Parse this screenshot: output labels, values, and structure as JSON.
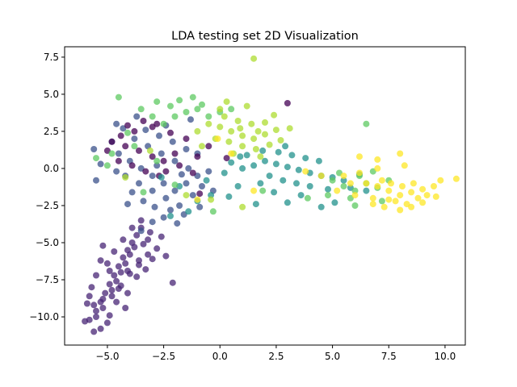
{
  "chart_data": {
    "type": "scatter",
    "title": "LDA testing set 2D Visualization",
    "xlabel": "",
    "ylabel": "",
    "xlim": [
      -6.9,
      10.9
    ],
    "ylim": [
      -11.9,
      8.2
    ],
    "xticks": [
      -5.0,
      -2.5,
      0.0,
      2.5,
      5.0,
      7.5,
      10.0
    ],
    "xtick_labels": [
      "−5.0",
      "−2.5",
      "0.0",
      "2.5",
      "5.0",
      "7.5",
      "10.0"
    ],
    "yticks": [
      -10.0,
      -7.5,
      -5.0,
      -2.5,
      0.0,
      2.5,
      5.0,
      7.5
    ],
    "ytick_labels": [
      "−10.0",
      "−7.5",
      "−5.0",
      "−2.5",
      "0.0",
      "2.5",
      "5.0",
      "7.5"
    ],
    "grid": false,
    "legend": "none",
    "marker_alpha": 0.75,
    "series": [
      {
        "color": "#482576",
        "description": "lower-left elongated cluster",
        "points": [
          [
            -5.8,
            -10.2
          ],
          [
            -5.5,
            -9.6
          ],
          [
            -5.3,
            -9.0
          ],
          [
            -5.1,
            -8.4
          ],
          [
            -4.9,
            -7.8
          ],
          [
            -4.7,
            -7.2
          ],
          [
            -4.5,
            -6.6
          ],
          [
            -4.3,
            -6.0
          ],
          [
            -4.1,
            -5.5
          ],
          [
            -3.9,
            -5.0
          ],
          [
            -3.7,
            -4.5
          ],
          [
            -3.5,
            -4.0
          ],
          [
            -5.6,
            -9.2
          ],
          [
            -5.2,
            -8.8
          ],
          [
            -4.8,
            -8.2
          ],
          [
            -4.6,
            -7.6
          ],
          [
            -4.4,
            -7.0
          ],
          [
            -4.2,
            -6.4
          ],
          [
            -4.0,
            -5.8
          ],
          [
            -3.8,
            -5.3
          ],
          [
            -3.4,
            -5.1
          ],
          [
            -3.2,
            -5.8
          ],
          [
            -3.6,
            -6.5
          ],
          [
            -4.0,
            -7.1
          ],
          [
            -4.4,
            -7.9
          ],
          [
            -4.8,
            -8.6
          ],
          [
            -5.2,
            -9.4
          ],
          [
            -5.5,
            -10.0
          ],
          [
            -5.0,
            -10.4
          ],
          [
            -5.3,
            -10.8
          ],
          [
            -5.6,
            -11.0
          ],
          [
            -6.0,
            -10.3
          ],
          [
            -5.9,
            -9.1
          ],
          [
            -5.7,
            -8.0
          ],
          [
            -5.5,
            -7.2
          ],
          [
            -5.3,
            -6.2
          ],
          [
            -5.2,
            -5.2
          ],
          [
            -4.9,
            -6.9
          ],
          [
            -4.5,
            -8.1
          ],
          [
            -4.1,
            -8.4
          ],
          [
            -3.7,
            -7.3
          ],
          [
            -3.3,
            -6.8
          ],
          [
            -3.0,
            -6.1
          ],
          [
            -2.8,
            -5.4
          ],
          [
            -2.6,
            -4.6
          ],
          [
            -3.1,
            -4.3
          ],
          [
            -3.9,
            -4.0
          ],
          [
            -4.3,
            -4.8
          ],
          [
            -4.7,
            -5.6
          ],
          [
            -5.0,
            -6.4
          ],
          [
            -2.1,
            -7.7
          ],
          [
            -2.4,
            -5.9
          ],
          [
            -3.5,
            -3.5
          ],
          [
            -4.6,
            -9.0
          ],
          [
            -4.2,
            -9.4
          ],
          [
            -5.8,
            -8.6
          ],
          [
            -4.9,
            -9.9
          ],
          [
            -3.6,
            -6.2
          ],
          [
            -3.2,
            -4.8
          ],
          [
            -4.1,
            -6.9
          ]
        ]
      },
      {
        "color": "#3b528b",
        "description": "upper-left blue cluster",
        "points": [
          [
            -4.5,
            1.0
          ],
          [
            -4.0,
            0.5
          ],
          [
            -3.5,
            0.0
          ],
          [
            -3.0,
            -0.5
          ],
          [
            -2.5,
            -1.0
          ],
          [
            -2.0,
            -1.5
          ],
          [
            -1.5,
            -1.0
          ],
          [
            -1.0,
            -0.5
          ],
          [
            -3.8,
            2.0
          ],
          [
            -3.2,
            1.5
          ],
          [
            -2.6,
            1.0
          ],
          [
            -2.0,
            0.5
          ],
          [
            -1.4,
            0.0
          ],
          [
            -4.2,
            -0.5
          ],
          [
            -3.6,
            -1.0
          ],
          [
            -3.0,
            -1.5
          ],
          [
            -2.4,
            -2.0
          ],
          [
            -1.8,
            -2.5
          ],
          [
            -3.3,
            2.6
          ],
          [
            -2.7,
            2.2
          ],
          [
            -2.1,
            1.8
          ],
          [
            -1.5,
            1.3
          ],
          [
            -4.8,
            1.8
          ],
          [
            -4.6,
            -0.2
          ],
          [
            -3.4,
            -2.2
          ],
          [
            -2.2,
            -2.8
          ],
          [
            -1.2,
            -1.8
          ],
          [
            -0.8,
            -1.2
          ],
          [
            -0.5,
            -0.2
          ],
          [
            -1.0,
            1.0
          ],
          [
            -3.9,
            -1.6
          ],
          [
            -2.9,
            -2.6
          ],
          [
            -4.3,
            2.7
          ],
          [
            -2.4,
            2.9
          ],
          [
            -5.3,
            0.3
          ],
          [
            -5.5,
            -0.8
          ],
          [
            -4.1,
            -2.4
          ],
          [
            -2.5,
            -3.3
          ],
          [
            -1.6,
            -3.1
          ],
          [
            -3.5,
            -4.2
          ],
          [
            -3.0,
            -3.6
          ],
          [
            -1.9,
            -3.7
          ],
          [
            -0.9,
            -2.6
          ],
          [
            -0.3,
            -1.5
          ],
          [
            -1.3,
            3.3
          ],
          [
            -3.7,
            3.5
          ],
          [
            -4.6,
            3.0
          ],
          [
            -5.6,
            1.3
          ],
          [
            -2.8,
            0.2
          ],
          [
            -1.7,
            -0.4
          ]
        ]
      },
      {
        "color": "#440154",
        "description": "dark purple points within upper-left cluster",
        "points": [
          [
            -4.8,
            1.8
          ],
          [
            -4.2,
            1.5
          ],
          [
            -3.6,
            1.2
          ],
          [
            -3.0,
            0.8
          ],
          [
            -2.5,
            0.5
          ],
          [
            -4.5,
            0.5
          ],
          [
            -3.9,
            0.2
          ],
          [
            -3.3,
            -0.2
          ],
          [
            -2.7,
            -0.5
          ],
          [
            -2.0,
            1.0
          ],
          [
            -1.5,
            2.0
          ],
          [
            -2.2,
            2.4
          ],
          [
            -3.0,
            2.8
          ],
          [
            -3.8,
            2.5
          ],
          [
            -4.4,
            2.2
          ],
          [
            -5.0,
            1.2
          ],
          [
            -1.8,
            0.2
          ],
          [
            -1.0,
            0.8
          ],
          [
            -0.5,
            1.5
          ],
          [
            -1.2,
            -0.3
          ],
          [
            -2.8,
            3.0
          ],
          [
            -3.4,
            3.2
          ],
          [
            -0.9,
            -1.7
          ],
          [
            3.0,
            4.4
          ],
          [
            0.3,
            0.7
          ],
          [
            -4.1,
            2.9
          ],
          [
            -2.4,
            -0.2
          ]
        ]
      },
      {
        "color": "#21918c",
        "description": "middle teal cluster",
        "points": [
          [
            2.0,
            0.5
          ],
          [
            2.5,
            0.3
          ],
          [
            3.0,
            0.1
          ],
          [
            3.5,
            -0.1
          ],
          [
            4.0,
            -0.3
          ],
          [
            4.5,
            -0.5
          ],
          [
            2.2,
            -0.5
          ],
          [
            2.8,
            -0.8
          ],
          [
            3.4,
            -1.0
          ],
          [
            4.0,
            -1.2
          ],
          [
            1.5,
            0.2
          ],
          [
            1.0,
            0.0
          ],
          [
            0.5,
            0.4
          ],
          [
            5.0,
            -0.6
          ],
          [
            5.5,
            -0.8
          ],
          [
            3.2,
            0.9
          ],
          [
            3.8,
            0.7
          ],
          [
            2.6,
            1.1
          ],
          [
            4.4,
            0.5
          ],
          [
            1.8,
            -1.0
          ],
          [
            0.8,
            -1.2
          ],
          [
            2.4,
            -1.6
          ],
          [
            3.6,
            -1.8
          ],
          [
            4.8,
            -1.4
          ],
          [
            5.8,
            -1.3
          ],
          [
            6.2,
            -0.4
          ],
          [
            1.2,
            0.9
          ],
          [
            0.2,
            -0.3
          ],
          [
            -0.4,
            -1.8
          ],
          [
            -1.0,
            -2.2
          ],
          [
            -1.8,
            -1.2
          ],
          [
            -2.6,
            -0.6
          ],
          [
            -1.4,
            -2.9
          ],
          [
            -2.2,
            -3.2
          ],
          [
            -0.6,
            -0.8
          ],
          [
            0.4,
            -1.9
          ],
          [
            1.6,
            -2.4
          ],
          [
            3.0,
            -2.3
          ],
          [
            4.5,
            -2.6
          ],
          [
            5.1,
            -2.3
          ],
          [
            6.5,
            -1.5
          ],
          [
            2.9,
            1.5
          ],
          [
            1.9,
            1.2
          ],
          [
            0.9,
            0.8
          ]
        ]
      },
      {
        "color": "#5ec962",
        "description": "green points mixed across clusters",
        "points": [
          [
            -2.5,
            3.0
          ],
          [
            -2.0,
            3.5
          ],
          [
            -1.5,
            3.8
          ],
          [
            -1.0,
            4.0
          ],
          [
            -0.5,
            3.5
          ],
          [
            0.5,
            4.0
          ],
          [
            -3.0,
            3.5
          ],
          [
            -2.2,
            4.2
          ],
          [
            -1.2,
            4.8
          ],
          [
            -3.5,
            4.0
          ],
          [
            -4.5,
            4.8
          ],
          [
            -2.8,
            4.5
          ],
          [
            -1.8,
            4.6
          ],
          [
            -0.8,
            4.3
          ],
          [
            0.0,
            3.8
          ],
          [
            -3.8,
            1.5
          ],
          [
            -2.8,
            0.5
          ],
          [
            -4.8,
            1.0
          ],
          [
            -5.0,
            0.2
          ],
          [
            -3.4,
            -1.6
          ],
          [
            5.0,
            -0.8
          ],
          [
            5.5,
            -1.2
          ],
          [
            6.0,
            -1.5
          ],
          [
            6.5,
            -1.0
          ],
          [
            7.0,
            -1.3
          ],
          [
            6.2,
            -0.5
          ],
          [
            4.8,
            -1.8
          ],
          [
            5.8,
            -2.0
          ],
          [
            7.2,
            -2.2
          ],
          [
            6.8,
            -0.2
          ],
          [
            6.5,
            3.0
          ],
          [
            6.0,
            -2.5
          ],
          [
            -4.1,
            2.4
          ],
          [
            -0.3,
            -2.9
          ],
          [
            7.5,
            -0.8
          ],
          [
            -5.5,
            0.7
          ],
          [
            -2.0,
            -1.1
          ],
          [
            1.9,
            -1.5
          ],
          [
            5.3,
            -0.3
          ],
          [
            3.9,
            -2.0
          ]
        ]
      },
      {
        "color": "#addc30",
        "description": "yellow-green upper-middle cluster",
        "points": [
          [
            0.0,
            2.8
          ],
          [
            0.5,
            2.5
          ],
          [
            1.0,
            2.2
          ],
          [
            1.5,
            2.0
          ],
          [
            2.0,
            2.3
          ],
          [
            2.5,
            2.6
          ],
          [
            0.2,
            3.5
          ],
          [
            0.8,
            3.2
          ],
          [
            1.4,
            3.0
          ],
          [
            2.0,
            3.1
          ],
          [
            0.4,
            1.8
          ],
          [
            1.0,
            1.5
          ],
          [
            1.6,
            1.3
          ],
          [
            2.2,
            1.6
          ],
          [
            -0.2,
            2.0
          ],
          [
            -0.5,
            3.0
          ],
          [
            0.0,
            4.0
          ],
          [
            1.2,
            4.2
          ],
          [
            2.4,
            3.6
          ],
          [
            1.8,
            0.8
          ],
          [
            0.6,
            1.0
          ],
          [
            -1.0,
            2.5
          ],
          [
            1.5,
            7.4
          ],
          [
            -0.8,
            1.5
          ],
          [
            2.7,
            1.9
          ],
          [
            3.1,
            2.7
          ],
          [
            0.3,
            4.5
          ],
          [
            -0.4,
            -2.1
          ],
          [
            1.0,
            -2.6
          ],
          [
            -1.5,
            -1.8
          ],
          [
            -3.1,
            1.2
          ],
          [
            -4.2,
            -0.6
          ],
          [
            0.9,
            2.7
          ],
          [
            1.7,
            2.5
          ]
        ]
      },
      {
        "color": "#fde725",
        "description": "right yellow cluster",
        "points": [
          [
            7.0,
            -1.2
          ],
          [
            7.5,
            -1.5
          ],
          [
            8.0,
            -1.8
          ],
          [
            8.5,
            -1.6
          ],
          [
            9.0,
            -1.4
          ],
          [
            7.8,
            -2.2
          ],
          [
            8.3,
            -2.4
          ],
          [
            8.8,
            -2.0
          ],
          [
            6.5,
            -1.0
          ],
          [
            7.2,
            -0.8
          ],
          [
            7.6,
            -1.0
          ],
          [
            8.1,
            -1.2
          ],
          [
            8.6,
            -1.0
          ],
          [
            9.2,
            -1.8
          ],
          [
            9.5,
            -1.2
          ],
          [
            6.8,
            -2.0
          ],
          [
            7.3,
            -2.6
          ],
          [
            8.0,
            -2.8
          ],
          [
            9.8,
            -0.8
          ],
          [
            10.5,
            -0.7
          ],
          [
            6.2,
            -0.3
          ],
          [
            5.8,
            -1.0
          ],
          [
            5.5,
            -0.5
          ],
          [
            7.0,
            0.0
          ],
          [
            8.2,
            0.2
          ],
          [
            8.0,
            1.0
          ],
          [
            7.0,
            0.6
          ],
          [
            6.2,
            0.8
          ],
          [
            6.8,
            -2.4
          ],
          [
            7.5,
            -2.1
          ],
          [
            8.5,
            -2.6
          ],
          [
            9.0,
            -2.3
          ],
          [
            9.6,
            -1.9
          ],
          [
            6.0,
            -1.8
          ],
          [
            5.2,
            -1.5
          ],
          [
            4.5,
            -0.5
          ],
          [
            3.8,
            -0.2
          ],
          [
            1.5,
            -1.5
          ],
          [
            -1.0,
            -2.1
          ],
          [
            0.5,
            1.0
          ],
          [
            -0.1,
            2.0
          ]
        ]
      }
    ]
  }
}
